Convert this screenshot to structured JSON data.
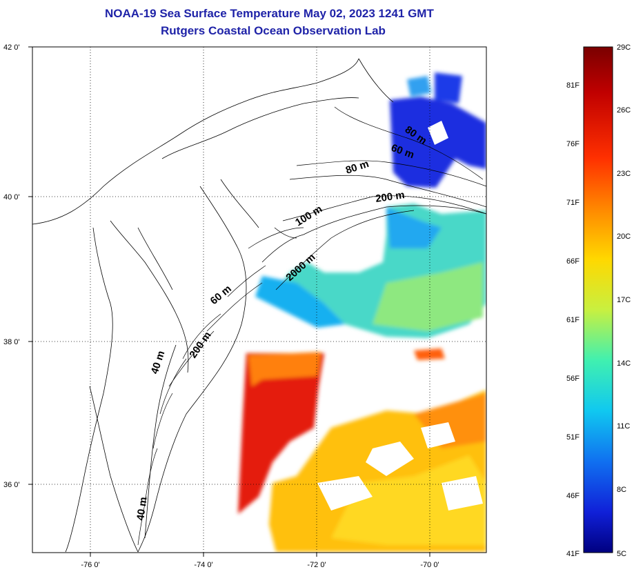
{
  "title": {
    "line1": "NOAA-19 Sea Surface Temperature May 02, 2023 1241 GMT",
    "line2": "Rutgers Coastal Ocean Observation Lab"
  },
  "map": {
    "lat_ticks": [
      "42 0'",
      "40 0'",
      "38 0'",
      "36 0'"
    ],
    "lon_ticks": [
      "-76 0'",
      "-74 0'",
      "-72 0'",
      "-70 0'"
    ],
    "contour_labels": [
      "80 m",
      "60 m",
      "80 m",
      "200 m",
      "100 m",
      "2000 m",
      "60 m",
      "200 m",
      "40 m",
      "40 m"
    ]
  },
  "colorbar": {
    "fahrenheit_labels": [
      "81F",
      "76F",
      "71F",
      "66F",
      "61F",
      "56F",
      "51F",
      "46F",
      "41F"
    ],
    "celsius_labels": [
      "29C",
      "26C",
      "23C",
      "20C",
      "17C",
      "14C",
      "11C",
      "8C",
      "5C"
    ],
    "colors": [
      "#7a0000",
      "#e01010",
      "#ff6a00",
      "#ffc400",
      "#e8f020",
      "#70f070",
      "#10e8e0",
      "#10a0f0",
      "#1040e0",
      "#000080"
    ]
  }
}
